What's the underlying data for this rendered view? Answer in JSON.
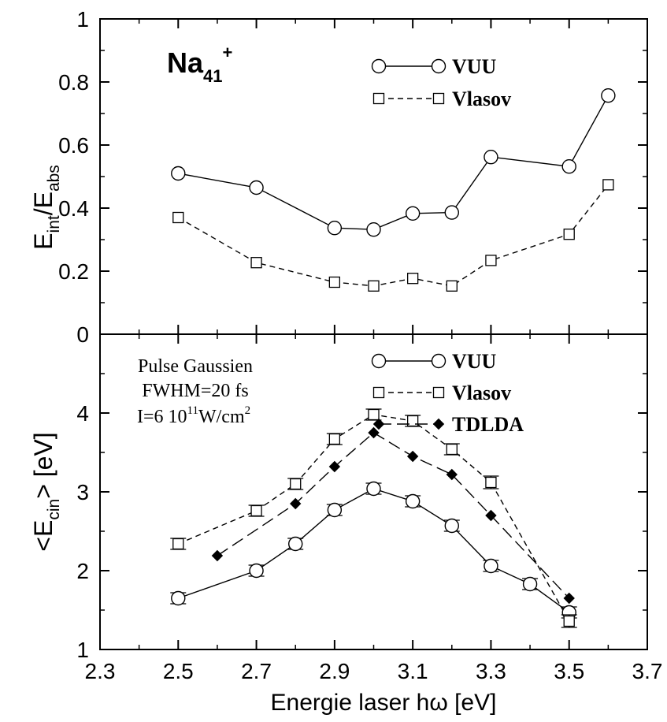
{
  "chart_data": [
    {
      "type": "line",
      "panel": "top",
      "ylabel": "E_int/E_abs",
      "ylabel_parts": {
        "main": "E",
        "sub1": "int",
        "slash": "/E",
        "sub2": "abs"
      },
      "ylim": [
        0,
        1
      ],
      "yticks": [
        0,
        0.2,
        0.4,
        0.6,
        0.8,
        1
      ],
      "ytick_labels": [
        "0",
        "0.2",
        "0.4",
        "0.6",
        "0.8",
        "1"
      ],
      "xlim": [
        2.3,
        3.7
      ],
      "grid": false,
      "annotation": {
        "base": "Na",
        "sub": "41",
        "sup": "+"
      },
      "legend_position": "top-right",
      "series": [
        {
          "name": "VUU",
          "marker": "circle",
          "line": "solid",
          "x": [
            2.5,
            2.7,
            2.9,
            3.0,
            3.1,
            3.2,
            3.3,
            3.5,
            3.6
          ],
          "y": [
            0.51,
            0.465,
            0.337,
            0.332,
            0.383,
            0.386,
            0.562,
            0.532,
            0.757
          ]
        },
        {
          "name": "Vlasov",
          "marker": "square",
          "line": "dashed",
          "x": [
            2.5,
            2.7,
            2.9,
            3.0,
            3.1,
            3.2,
            3.3,
            3.5,
            3.6
          ],
          "y": [
            0.37,
            0.227,
            0.165,
            0.153,
            0.177,
            0.153,
            0.234,
            0.317,
            0.474
          ]
        }
      ]
    },
    {
      "type": "line",
      "panel": "bottom",
      "ylabel": "<E_cin> [eV]",
      "ylabel_parts": {
        "pre": "<E",
        "sub": "cin",
        "post": "> [eV]"
      },
      "xlabel": "Energie laser hω [eV]",
      "ylim": [
        1,
        5
      ],
      "yticks": [
        1,
        2,
        3,
        4
      ],
      "ytick_labels": [
        "1",
        "2",
        "3",
        "4"
      ],
      "xlim": [
        2.3,
        3.7
      ],
      "xticks": [
        2.3,
        2.5,
        2.7,
        2.9,
        3.1,
        3.3,
        3.5,
        3.7
      ],
      "xtick_labels": [
        "2.3",
        "2.5",
        "2.7",
        "2.9",
        "3.1",
        "3.3",
        "3.5",
        "3.7"
      ],
      "grid": false,
      "legend_position": "top-right",
      "annotation": {
        "line1": "Pulse Gaussien",
        "line2": "FWHM=20 fs",
        "line3_pre": "I=6 10",
        "line3_sup1": "11",
        "line3_mid": "W/cm",
        "line3_sup2": "2"
      },
      "series": [
        {
          "name": "VUU",
          "marker": "circle",
          "line": "solid",
          "x": [
            2.5,
            2.7,
            2.8,
            2.9,
            3.0,
            3.1,
            3.2,
            3.3,
            3.4,
            3.5
          ],
          "y": [
            1.65,
            2.0,
            2.34,
            2.77,
            3.04,
            2.88,
            2.57,
            2.06,
            1.83,
            1.47
          ],
          "err": [
            0.07,
            0.07,
            0.07,
            0.07,
            0.07,
            0.07,
            0.07,
            0.07,
            0.07,
            0.07
          ]
        },
        {
          "name": "Vlasov",
          "marker": "square",
          "line": "dashed",
          "x": [
            2.5,
            2.7,
            2.8,
            2.9,
            3.0,
            3.1,
            3.2,
            3.3,
            3.5
          ],
          "y": [
            2.34,
            2.76,
            3.1,
            3.67,
            3.98,
            3.9,
            3.54,
            3.12,
            1.36
          ],
          "err": [
            0.07,
            0.07,
            0.07,
            0.07,
            0.07,
            0.07,
            0.07,
            0.08,
            0.08
          ]
        },
        {
          "name": "TDLDA",
          "marker": "diamond",
          "line": "long-dashed",
          "x": [
            2.6,
            2.8,
            2.9,
            3.0,
            3.1,
            3.2,
            3.3,
            3.5
          ],
          "y": [
            2.19,
            2.85,
            3.32,
            3.75,
            3.45,
            3.22,
            2.7,
            1.65
          ]
        }
      ]
    }
  ]
}
